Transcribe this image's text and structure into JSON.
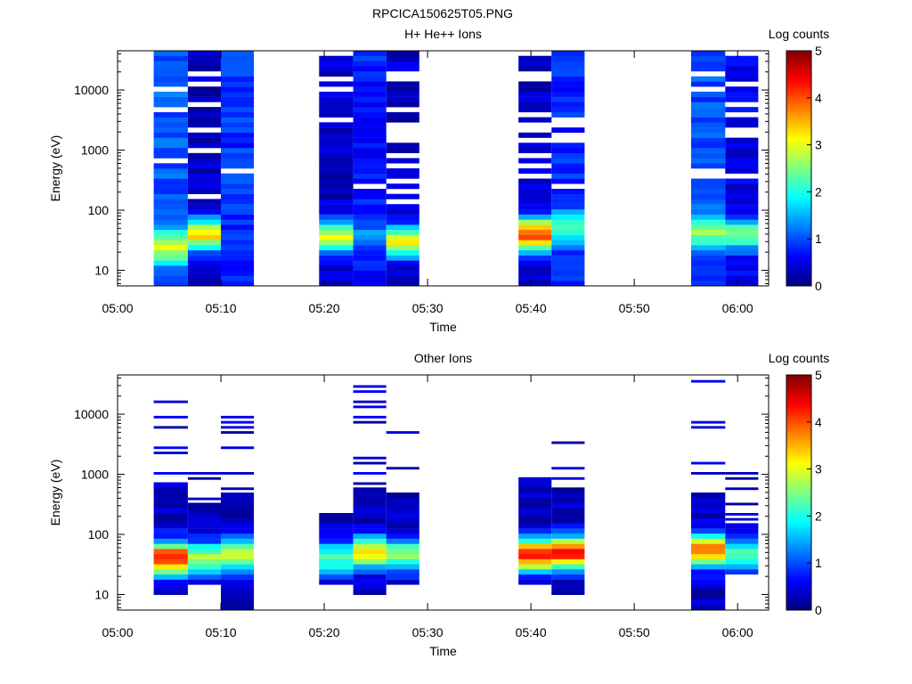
{
  "figure_title": "RPCICA150625T05.PNG",
  "chart_data": [
    {
      "type": "heatmap",
      "title": "H+ He++ Ions",
      "xlabel": "Time",
      "ylabel": "Energy (eV)",
      "x_ticks": [
        "05:00",
        "05:10",
        "05:20",
        "05:30",
        "05:40",
        "05:50",
        "06:00"
      ],
      "x_range": [
        "05:00",
        "06:03"
      ],
      "y_scale": "log",
      "y_ticks": [
        "10",
        "100",
        "1000",
        "10000"
      ],
      "y_range": [
        5.5,
        45000
      ],
      "colorbar": {
        "label": "Log counts",
        "ticks": [
          "0",
          "1",
          "2",
          "3",
          "4",
          "5"
        ],
        "range": [
          0,
          5
        ]
      },
      "grid": false,
      "columns": [
        {
          "start": "05:03.5",
          "end": "05:06.8",
          "seed": 11,
          "peak_e": 25,
          "peak_v": 3.0,
          "bg": 1.05,
          "low_cut": 6,
          "top": 45000,
          "gap": 0.05
        },
        {
          "start": "05:06.8",
          "end": "05:10.0",
          "seed": 23,
          "peak_e": 40,
          "peak_v": 3.3,
          "bg": 0.35,
          "low_cut": 6,
          "top": 45000,
          "gap": 0.25
        },
        {
          "start": "05:10.0",
          "end": "05:13.2",
          "seed": 37,
          "peak_e": 25,
          "peak_v": 0.9,
          "bg": 0.85,
          "low_cut": 6,
          "top": 45000,
          "gap": 0.08
        },
        {
          "start": "05:19.5",
          "end": "05:22.8",
          "seed": 41,
          "peak_e": 35,
          "peak_v": 2.9,
          "bg": 0.35,
          "low_cut": 6,
          "top": 45000,
          "gap": 0.25
        },
        {
          "start": "05:22.8",
          "end": "05:26.0",
          "seed": 53,
          "peak_e": 40,
          "peak_v": 1.3,
          "bg": 0.75,
          "low_cut": 6,
          "top": 45000,
          "gap": 0.08
        },
        {
          "start": "05:26.0",
          "end": "05:29.2",
          "seed": 67,
          "peak_e": 30,
          "peak_v": 3.2,
          "bg": 0.35,
          "low_cut": 6,
          "top": 45000,
          "gap": 0.25
        },
        {
          "start": "05:38.8",
          "end": "05:42.0",
          "seed": 71,
          "peak_e": 40,
          "peak_v": 4.1,
          "bg": 0.35,
          "low_cut": 6,
          "top": 45000,
          "gap": 0.25
        },
        {
          "start": "05:42.0",
          "end": "05:45.2",
          "seed": 83,
          "peak_e": 50,
          "peak_v": 2.2,
          "bg": 0.8,
          "low_cut": 6,
          "top": 45000,
          "gap": 0.08
        },
        {
          "start": "05:55.5",
          "end": "05:58.8",
          "seed": 97,
          "peak_e": 45,
          "peak_v": 2.6,
          "bg": 1.0,
          "low_cut": 6,
          "top": 45000,
          "gap": 0.05
        },
        {
          "start": "05:58.8",
          "end": "06:02.0",
          "seed": 101,
          "peak_e": 40,
          "peak_v": 2.4,
          "bg": 0.5,
          "low_cut": 6,
          "top": 45000,
          "gap": 0.18
        }
      ]
    },
    {
      "type": "heatmap",
      "title": "Other Ions",
      "xlabel": "Time",
      "ylabel": "Energy (eV)",
      "x_ticks": [
        "05:00",
        "05:10",
        "05:20",
        "05:30",
        "05:40",
        "05:50",
        "06:00"
      ],
      "x_range": [
        "05:00",
        "06:03"
      ],
      "y_scale": "log",
      "y_ticks": [
        "10",
        "100",
        "1000",
        "10000"
      ],
      "y_range": [
        5.5,
        45000
      ],
      "colorbar": {
        "label": "Log counts",
        "ticks": [
          "0",
          "1",
          "2",
          "3",
          "4",
          "5"
        ],
        "range": [
          0,
          5
        ]
      },
      "grid": false,
      "columns": [
        {
          "start": "05:03.5",
          "end": "05:06.8",
          "seed": 113,
          "peak_e": 40,
          "peak_v": 4.4,
          "bg": 0.35,
          "low_cut": 9,
          "top": 700,
          "gap": 0.0,
          "sparse_top": 25000
        },
        {
          "start": "05:06.8",
          "end": "05:10.0",
          "seed": 127,
          "peak_e": 40,
          "peak_v": 2.8,
          "bg": 0.3,
          "low_cut": 14,
          "top": 350,
          "gap": 0.0,
          "sparse_top": 1800
        },
        {
          "start": "05:10.0",
          "end": "05:13.2",
          "seed": 131,
          "peak_e": 45,
          "peak_v": 3.0,
          "bg": 0.3,
          "low_cut": 6,
          "top": 500,
          "gap": 0.0,
          "sparse_top": 22000
        },
        {
          "start": "05:19.5",
          "end": "05:22.8",
          "seed": 139,
          "peak_e": 40,
          "peak_v": 2.3,
          "bg": 0.3,
          "low_cut": 15,
          "top": 230,
          "gap": 0.0
        },
        {
          "start": "05:22.8",
          "end": "05:26.0",
          "seed": 149,
          "peak_e": 50,
          "peak_v": 3.4,
          "bg": 0.3,
          "low_cut": 9,
          "top": 550,
          "gap": 0.0,
          "sparse_top": 30000
        },
        {
          "start": "05:26.0",
          "end": "05:29.2",
          "seed": 151,
          "peak_e": 45,
          "peak_v": 2.6,
          "bg": 0.3,
          "low_cut": 15,
          "top": 500,
          "gap": 0.0,
          "sparse_top": 4800
        },
        {
          "start": "05:38.8",
          "end": "05:42.0",
          "seed": 163,
          "peak_e": 45,
          "peak_v": 4.3,
          "bg": 0.3,
          "low_cut": 15,
          "top": 850,
          "gap": 0.0
        },
        {
          "start": "05:42.0",
          "end": "05:45.2",
          "seed": 167,
          "peak_e": 50,
          "peak_v": 4.4,
          "bg": 0.3,
          "low_cut": 9,
          "top": 550,
          "gap": 0.0,
          "sparse_top": 4500
        },
        {
          "start": "05:55.5",
          "end": "05:58.8",
          "seed": 173,
          "peak_e": 55,
          "peak_v": 3.9,
          "bg": 0.3,
          "low_cut": 6,
          "top": 500,
          "gap": 0.0,
          "sparse_top": 35000
        },
        {
          "start": "05:58.8",
          "end": "06:02.0",
          "seed": 179,
          "peak_e": 45,
          "peak_v": 2.3,
          "bg": 0.3,
          "low_cut": 22,
          "top": 150,
          "gap": 0.0,
          "sparse_top": 2600
        }
      ]
    }
  ]
}
